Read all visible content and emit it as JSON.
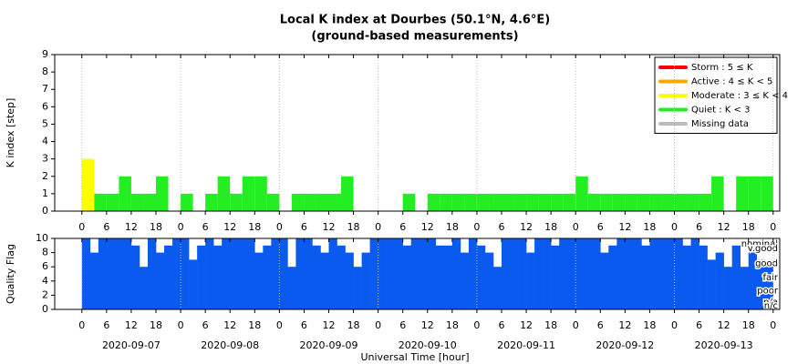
{
  "chart_data": [
    {
      "type": "bar",
      "title": "Local K index at Dourbes (50.1°N, 4.6°E)",
      "subtitle": "(ground-based measurements)",
      "ylabel": "K index [step]",
      "x": [
        0,
        3,
        6,
        9,
        12,
        15,
        18,
        21,
        24,
        27,
        30,
        33,
        36,
        39,
        42,
        45,
        48,
        51,
        54,
        57,
        60,
        63,
        66,
        69,
        72,
        75,
        78,
        81,
        84,
        87,
        90,
        93,
        96,
        99,
        102,
        105,
        108,
        111,
        114,
        117,
        120,
        123,
        126,
        129,
        132,
        135,
        138,
        141,
        144,
        147,
        150,
        153,
        156,
        159,
        162,
        165
      ],
      "values": [
        3,
        1,
        1,
        2,
        1,
        1,
        2,
        0,
        1,
        0,
        1,
        2,
        1,
        2,
        2,
        1,
        0,
        1,
        1,
        1,
        1,
        2,
        0,
        0,
        0,
        0,
        1,
        0,
        1,
        1,
        1,
        1,
        1,
        1,
        1,
        1,
        1,
        1,
        1,
        1,
        2,
        1,
        1,
        1,
        1,
        1,
        1,
        1,
        1,
        1,
        1,
        2,
        0,
        2,
        2,
        2
      ],
      "xlim": [
        -6.6,
        169.6
      ],
      "ylim": [
        0,
        9
      ],
      "yticks": [
        0,
        1,
        2,
        3,
        4,
        5,
        6,
        7,
        8,
        9
      ],
      "xticks": [
        0,
        6,
        12,
        18,
        {
          "value": 24,
          "label": "0"
        },
        {
          "value": 30,
          "label": "6"
        },
        {
          "value": 36,
          "label": "12"
        },
        {
          "value": 42,
          "label": "18"
        },
        {
          "value": 48,
          "label": "0"
        },
        {
          "value": 54,
          "label": "6"
        },
        {
          "value": 60,
          "label": "12"
        },
        {
          "value": 66,
          "label": "18"
        },
        {
          "value": 72,
          "label": "0"
        },
        {
          "value": 78,
          "label": "6"
        },
        {
          "value": 84,
          "label": "12"
        },
        {
          "value": 90,
          "label": "18"
        },
        {
          "value": 96,
          "label": "0"
        },
        {
          "value": 102,
          "label": "6"
        },
        {
          "value": 108,
          "label": "12"
        },
        {
          "value": 114,
          "label": "18"
        },
        {
          "value": 120,
          "label": "0"
        },
        {
          "value": 126,
          "label": "6"
        },
        {
          "value": 132,
          "label": "12"
        },
        {
          "value": 138,
          "label": "18"
        },
        {
          "value": 144,
          "label": "0"
        },
        {
          "value": 150,
          "label": "6"
        },
        {
          "value": 156,
          "label": "12"
        },
        {
          "value": 162,
          "label": "18"
        },
        {
          "value": 168,
          "label": "0"
        }
      ],
      "xgrid": [
        0,
        24,
        48,
        72,
        96,
        120,
        144,
        168
      ],
      "legend_position": "upper right",
      "legend": [
        {
          "name": "Storm : 5 ≤ K",
          "color": "#ff0000",
          "min": 5
        },
        {
          "name": "Active : 4 ≤ K < 5",
          "color": "#ffa500",
          "min": 4
        },
        {
          "name": "Moderate : 3 ≤ K < 4",
          "color": "#ffff00",
          "min": 3
        },
        {
          "name": "Quiet : K < 3",
          "color": "#22ee22",
          "min": 0
        },
        {
          "name": "Missing data",
          "color": "#bbbbbb"
        }
      ]
    },
    {
      "type": "area",
      "ylabel": "Quality Flag",
      "xlabel": "Universal Time [hour]",
      "color": "#0a5af0",
      "x": [
        0,
        2,
        4,
        6,
        8,
        10,
        12,
        14,
        16,
        18,
        20,
        22,
        24,
        26,
        28,
        30,
        32,
        34,
        36,
        38,
        40,
        42,
        44,
        46,
        48,
        50,
        52,
        54,
        56,
        58,
        60,
        62,
        64,
        66,
        68,
        70,
        72,
        74,
        76,
        78,
        80,
        82,
        84,
        86,
        88,
        90,
        92,
        94,
        96,
        98,
        100,
        102,
        104,
        106,
        108,
        110,
        112,
        114,
        116,
        118,
        120,
        122,
        124,
        126,
        128,
        130,
        132,
        134,
        136,
        138,
        140,
        142,
        144,
        146,
        148,
        150,
        152,
        154,
        156,
        158,
        160,
        162,
        164,
        166
      ],
      "values": [
        10,
        8,
        10,
        10,
        10,
        10,
        9,
        6,
        10,
        8,
        9,
        10,
        10,
        7,
        9,
        10,
        9,
        10,
        10,
        10,
        10,
        8,
        9,
        10,
        10,
        6,
        10,
        10,
        9,
        8,
        10,
        9,
        8,
        6,
        8,
        10,
        10,
        10,
        10,
        9,
        10,
        10,
        10,
        9,
        9,
        10,
        8,
        10,
        9,
        8,
        6,
        10,
        10,
        10,
        8,
        10,
        10,
        9,
        10,
        10,
        10,
        10,
        10,
        8,
        9,
        10,
        10,
        10,
        9,
        10,
        10,
        10,
        10,
        9,
        10,
        9,
        7,
        8,
        6,
        9,
        6,
        8,
        7,
        6
      ],
      "xlim": [
        -6.6,
        169.6
      ],
      "ylim": [
        0,
        10
      ],
      "yticks": [
        0,
        2,
        4,
        6,
        8,
        10
      ],
      "quality_labels": [
        {
          "value": 10,
          "label": "nominal"
        },
        {
          "value": 8.6,
          "label": "v.good"
        },
        {
          "value": 6.5,
          "label": "good"
        },
        {
          "value": 4.5,
          "label": "fair"
        },
        {
          "value": 2.6,
          "label": "poor"
        },
        {
          "value": 1,
          "label": "n/a"
        },
        {
          "value": 0,
          "label": "n/c"
        }
      ],
      "xticks": [
        0,
        6,
        12,
        18,
        {
          "value": 24,
          "label": "0"
        },
        {
          "value": 30,
          "label": "6"
        },
        {
          "value": 36,
          "label": "12"
        },
        {
          "value": 42,
          "label": "18"
        },
        {
          "value": 48,
          "label": "0"
        },
        {
          "value": 54,
          "label": "6"
        },
        {
          "value": 60,
          "label": "12"
        },
        {
          "value": 66,
          "label": "18"
        },
        {
          "value": 72,
          "label": "0"
        },
        {
          "value": 78,
          "label": "6"
        },
        {
          "value": 84,
          "label": "12"
        },
        {
          "value": 90,
          "label": "18"
        },
        {
          "value": 96,
          "label": "0"
        },
        {
          "value": 102,
          "label": "6"
        },
        {
          "value": 108,
          "label": "12"
        },
        {
          "value": 114,
          "label": "18"
        },
        {
          "value": 120,
          "label": "0"
        },
        {
          "value": 126,
          "label": "6"
        },
        {
          "value": 132,
          "label": "12"
        },
        {
          "value": 138,
          "label": "18"
        },
        {
          "value": 144,
          "label": "0"
        },
        {
          "value": 150,
          "label": "6"
        },
        {
          "value": 156,
          "label": "12"
        },
        {
          "value": 162,
          "label": "18"
        },
        {
          "value": 168,
          "label": "0"
        }
      ],
      "xgrid": [
        0,
        24,
        48,
        72,
        96,
        120,
        144,
        168
      ],
      "date_labels": [
        {
          "value": 12,
          "label": "2020-09-07"
        },
        {
          "value": 36,
          "label": "2020-09-08"
        },
        {
          "value": 60,
          "label": "2020-09-09"
        },
        {
          "value": 84,
          "label": "2020-09-10"
        },
        {
          "value": 108,
          "label": "2020-09-11"
        },
        {
          "value": 132,
          "label": "2020-09-12"
        },
        {
          "value": 156,
          "label": "2020-09-13"
        }
      ]
    }
  ]
}
